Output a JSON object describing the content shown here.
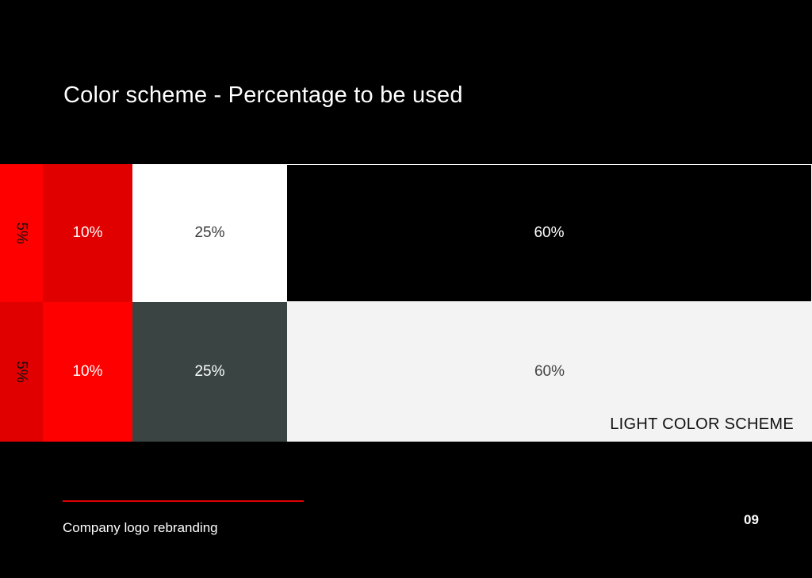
{
  "title": "Color scheme - Percentage to be used",
  "colors": {
    "background": "#000000",
    "accent": "#e10000"
  },
  "rows": [
    {
      "cells": [
        {
          "label": "5%",
          "bg": "#ff0000",
          "fg": "#111111"
        },
        {
          "label": "10%",
          "bg": "#e10000",
          "fg": "#ffffff"
        },
        {
          "label": "25%",
          "bg": "#ffffff",
          "fg": "#3a3a3a"
        },
        {
          "label": "60%",
          "bg": "#000000",
          "fg": "#ffffff"
        }
      ]
    },
    {
      "scheme_label": "LIGHT COLOR SCHEME",
      "cells": [
        {
          "label": "5%",
          "bg": "#e10000",
          "fg": "#111111"
        },
        {
          "label": "10%",
          "bg": "#ff0000",
          "fg": "#ffffff"
        },
        {
          "label": "25%",
          "bg": "#3a4543",
          "fg": "#ffffff"
        },
        {
          "label": "60%",
          "bg": "#f3f3f3",
          "fg": "#444444"
        }
      ]
    }
  ],
  "footer": {
    "text": "Company logo rebranding",
    "page_number": "09"
  }
}
